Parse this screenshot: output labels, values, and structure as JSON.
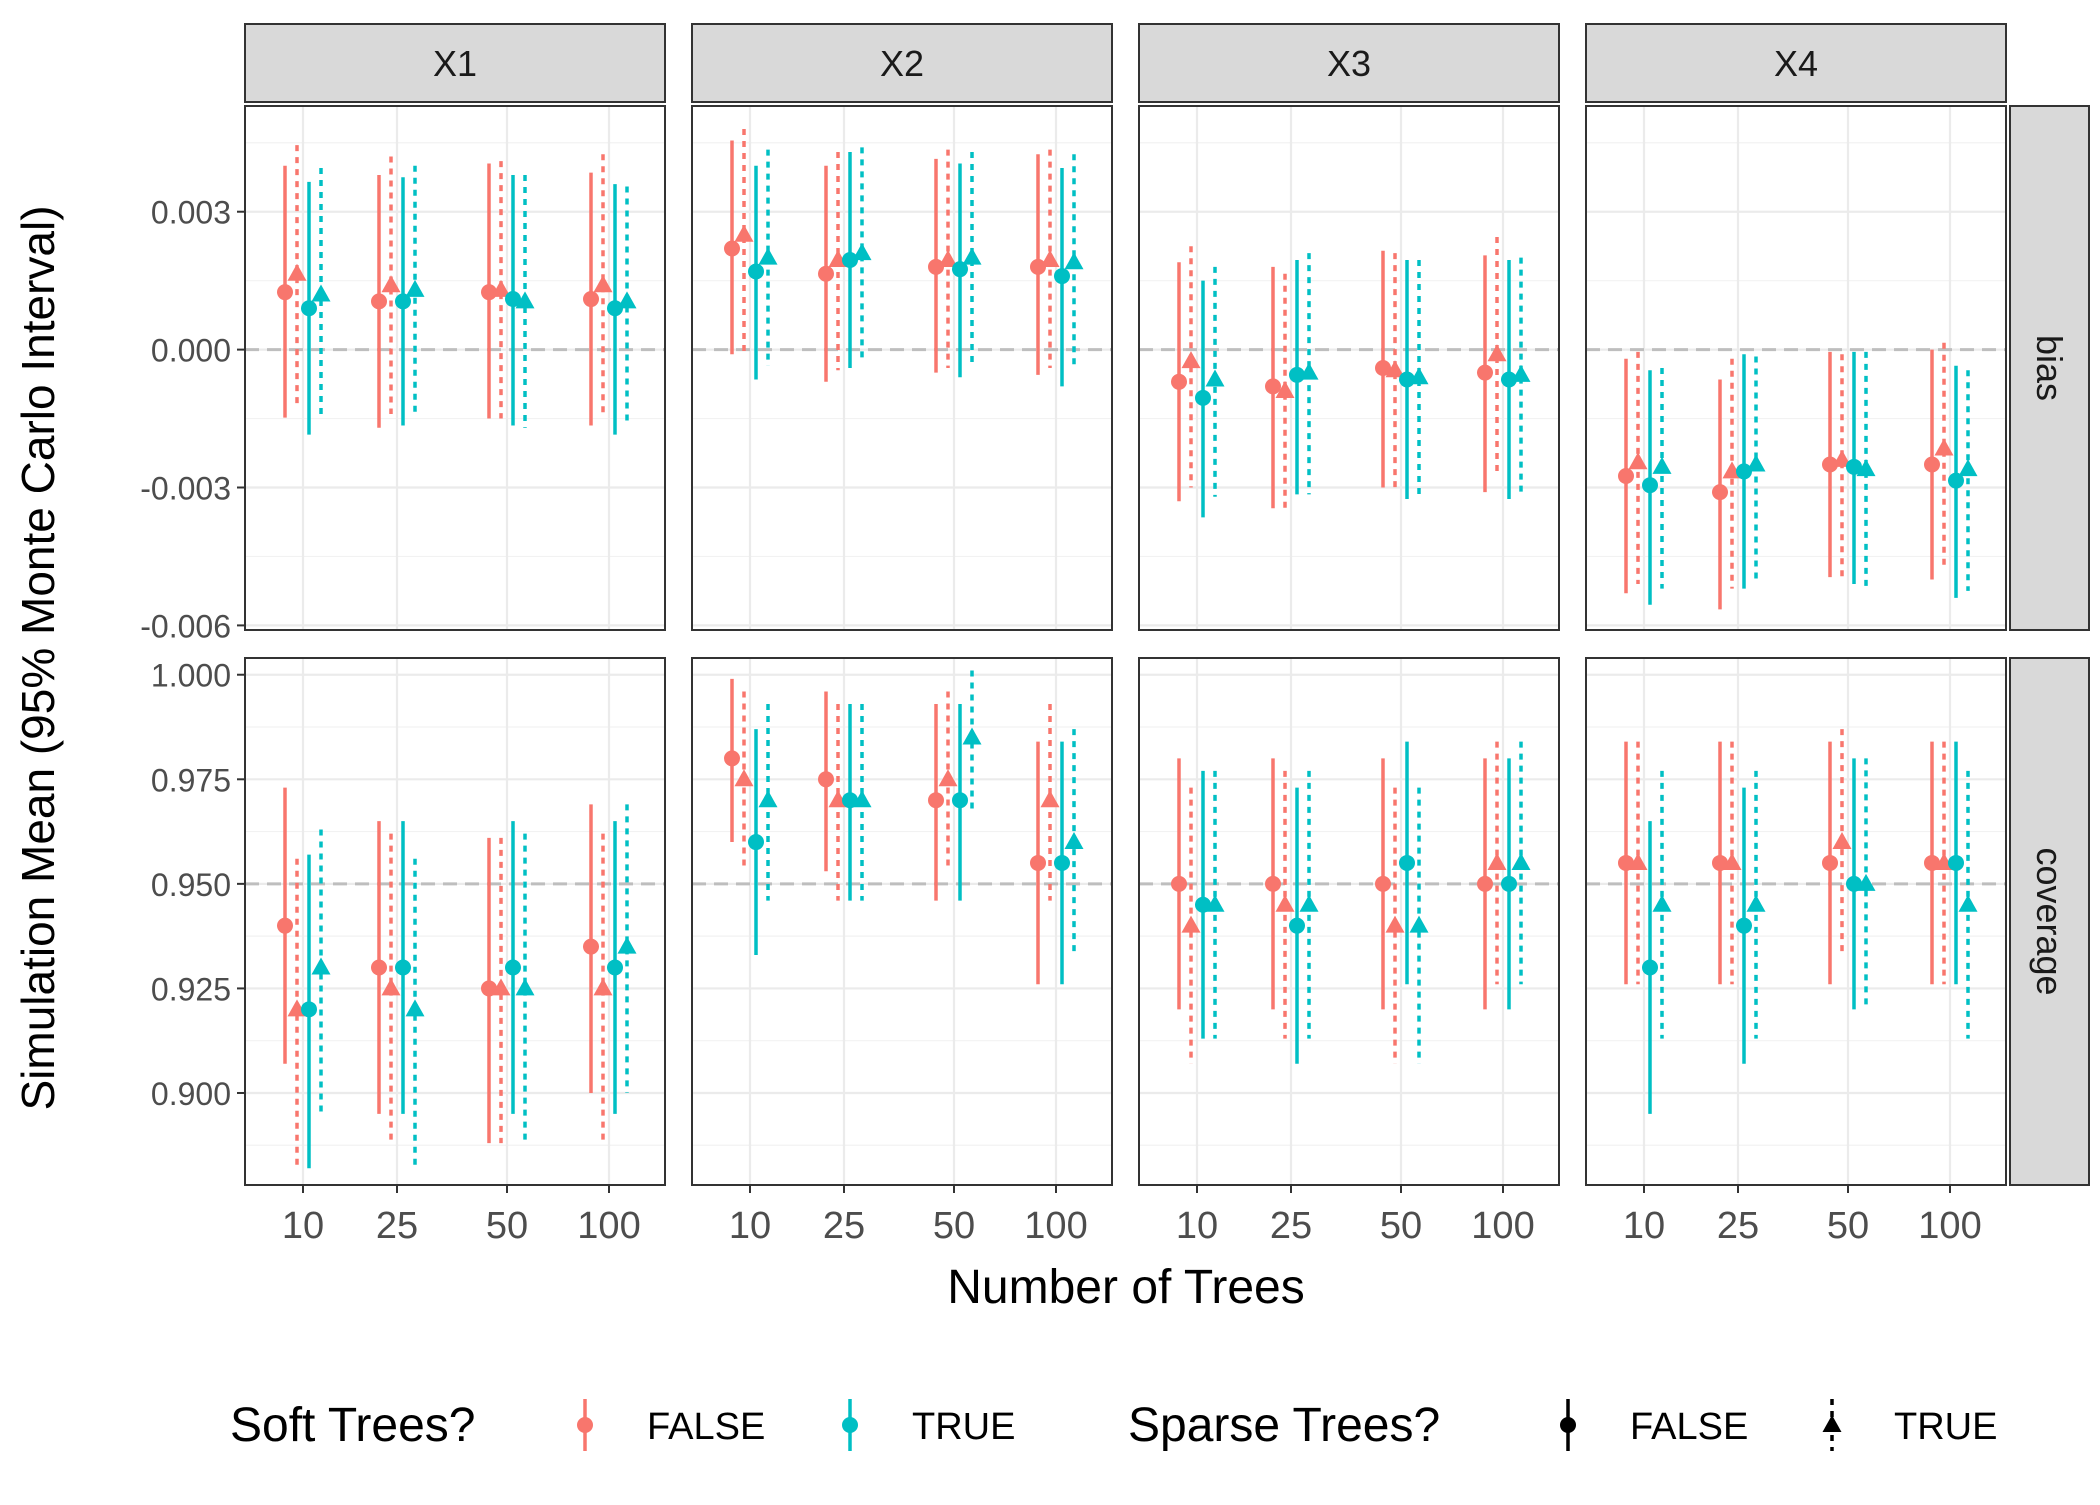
{
  "chart_data": {
    "type": "scatter",
    "facet_columns": [
      "X1",
      "X2",
      "X3",
      "X4"
    ],
    "facet_rows": [
      "bias",
      "coverage"
    ],
    "xlabel": "Number of Trees",
    "ylabel": "Simulation Mean (95% Monte Carlo Interval)",
    "x_categories": [
      "10",
      "25",
      "50",
      "100"
    ],
    "rows": [
      {
        "name": "bias",
        "ylim": [
          -0.0061,
          0.0053
        ],
        "yticks": [
          -0.006,
          -0.003,
          0.0,
          0.003
        ],
        "ytick_labels": [
          "-0.006",
          "-0.003",
          "0.000",
          "0.003"
        ],
        "reference": 0.0
      },
      {
        "name": "coverage",
        "ylim": [
          0.878,
          1.004
        ],
        "yticks": [
          0.9,
          0.925,
          0.95,
          0.975,
          1.0
        ],
        "ytick_labels": [
          "0.900",
          "0.925",
          "0.950",
          "0.975",
          "1.000"
        ],
        "reference": 0.95
      }
    ],
    "series_order": [
      {
        "soft": "FALSE",
        "sparse": "FALSE"
      },
      {
        "soft": "FALSE",
        "sparse": "TRUE"
      },
      {
        "soft": "TRUE",
        "sparse": "FALSE"
      },
      {
        "soft": "TRUE",
        "sparse": "TRUE"
      }
    ],
    "colors": {
      "FALSE": "#F8766D",
      "TRUE": "#00BFC4"
    },
    "data": {
      "bias": {
        "X1": [
          [
            [
              0.00125,
              -0.00148,
              0.004
            ],
            [
              0.00165,
              -0.0012,
              0.00445
            ],
            [
              0.0009,
              -0.00185,
              0.00365
            ],
            [
              0.0012,
              -0.0015,
              0.00395
            ]
          ],
          [
            [
              0.00105,
              -0.0017,
              0.0038
            ],
            [
              0.0014,
              -0.0014,
              0.0042
            ],
            [
              0.00105,
              -0.00165,
              0.00375
            ],
            [
              0.0013,
              -0.0014,
              0.004
            ]
          ],
          [
            [
              0.00125,
              -0.0015,
              0.00405
            ],
            [
              0.0013,
              -0.0015,
              0.0041
            ],
            [
              0.0011,
              -0.00165,
              0.0038
            ],
            [
              0.00105,
              -0.0017,
              0.0038
            ]
          ],
          [
            [
              0.0011,
              -0.00165,
              0.00385
            ],
            [
              0.0014,
              -0.0014,
              0.00425
            ],
            [
              0.0009,
              -0.00185,
              0.0036
            ],
            [
              0.00105,
              -0.00165,
              0.00355
            ]
          ]
        ],
        "X2": [
          [
            [
              0.0022,
              -0.0001,
              0.00455
            ],
            [
              0.0025,
              -5e-05,
              0.0048
            ],
            [
              0.0017,
              -0.00065,
              0.004
            ],
            [
              0.002,
              -0.00035,
              0.00435
            ]
          ],
          [
            [
              0.00165,
              -0.0007,
              0.004
            ],
            [
              0.00195,
              -0.00045,
              0.0043
            ],
            [
              0.00195,
              -0.0004,
              0.0043
            ],
            [
              0.0021,
              -0.0003,
              0.0044
            ]
          ],
          [
            [
              0.0018,
              -0.0005,
              0.00415
            ],
            [
              0.00195,
              -0.0004,
              0.00435
            ],
            [
              0.00175,
              -0.0006,
              0.00405
            ],
            [
              0.002,
              -0.0003,
              0.0043
            ]
          ],
          [
            [
              0.0018,
              -0.00055,
              0.00425
            ],
            [
              0.00195,
              -0.0004,
              0.00435
            ],
            [
              0.0016,
              -0.0008,
              0.00395
            ],
            [
              0.0019,
              -0.0004,
              0.00425
            ]
          ]
        ],
        "X3": [
          [
            [
              -0.0007,
              -0.0033,
              0.0019
            ],
            [
              -0.00025,
              -0.003,
              0.00225
            ],
            [
              -0.00105,
              -0.00365,
              0.0015
            ],
            [
              -0.00065,
              -0.0032,
              0.0018
            ]
          ],
          [
            [
              -0.0008,
              -0.00345,
              0.0018
            ],
            [
              -0.0009,
              -0.00355,
              0.00165
            ],
            [
              -0.00055,
              -0.00315,
              0.00195
            ],
            [
              -0.0005,
              -0.00315,
              0.0021
            ]
          ],
          [
            [
              -0.0004,
              -0.003,
              0.00215
            ],
            [
              -0.00045,
              -0.00305,
              0.0021
            ],
            [
              -0.00065,
              -0.00325,
              0.00195
            ],
            [
              -0.0006,
              -0.0032,
              0.00195
            ]
          ],
          [
            [
              -0.0005,
              -0.0031,
              0.00205
            ],
            [
              -0.0001,
              -0.00275,
              0.00245
            ],
            [
              -0.00065,
              -0.00325,
              0.00195
            ],
            [
              -0.00055,
              -0.00315,
              0.002
            ]
          ]
        ],
        "X4": [
          [
            [
              -0.00275,
              -0.0053,
              -0.0002
            ],
            [
              -0.00245,
              -0.0051,
              -5e-05
            ],
            [
              -0.00295,
              -0.00555,
              -0.00045
            ],
            [
              -0.00255,
              -0.0052,
              -0.0004
            ]
          ],
          [
            [
              -0.0031,
              -0.00565,
              -0.00065
            ],
            [
              -0.00265,
              -0.0052,
              -0.0002
            ],
            [
              -0.00265,
              -0.0052,
              -0.0001
            ],
            [
              -0.0025,
              -0.00505,
              -0.00015
            ]
          ],
          [
            [
              -0.0025,
              -0.00495,
              -5e-05
            ],
            [
              -0.0024,
              -0.005,
              -0.0001
            ],
            [
              -0.00255,
              -0.0051,
              -5e-05
            ],
            [
              -0.0026,
              -0.00525,
              -5e-05
            ]
          ],
          [
            [
              -0.0025,
              -0.005,
              0.0
            ],
            [
              -0.00215,
              -0.0048,
              0.00015
            ],
            [
              -0.00285,
              -0.0054,
              -0.00035
            ],
            [
              -0.0026,
              -0.00525,
              -0.00045
            ]
          ]
        ]
      },
      "coverage": {
        "X1": [
          [
            [
              0.94,
              0.907,
              0.973
            ],
            [
              0.92,
              0.882,
              0.956
            ],
            [
              0.92,
              0.882,
              0.957
            ],
            [
              0.93,
              0.895,
              0.963
            ]
          ],
          [
            [
              0.93,
              0.895,
              0.965
            ],
            [
              0.925,
              0.888,
              0.962
            ],
            [
              0.93,
              0.895,
              0.965
            ],
            [
              0.92,
              0.882,
              0.956
            ]
          ],
          [
            [
              0.925,
              0.888,
              0.961
            ],
            [
              0.925,
              0.888,
              0.961
            ],
            [
              0.93,
              0.895,
              0.965
            ],
            [
              0.925,
              0.888,
              0.962
            ]
          ],
          [
            [
              0.935,
              0.9,
              0.969
            ],
            [
              0.925,
              0.888,
              0.962
            ],
            [
              0.93,
              0.895,
              0.965
            ],
            [
              0.935,
              0.9,
              0.969
            ]
          ]
        ],
        "X2": [
          [
            [
              0.98,
              0.96,
              0.999
            ],
            [
              0.975,
              0.953,
              0.996
            ],
            [
              0.96,
              0.933,
              0.987
            ],
            [
              0.97,
              0.946,
              0.993
            ]
          ],
          [
            [
              0.975,
              0.953,
              0.996
            ],
            [
              0.97,
              0.946,
              0.993
            ],
            [
              0.97,
              0.946,
              0.993
            ],
            [
              0.97,
              0.946,
              0.993
            ]
          ],
          [
            [
              0.97,
              0.946,
              0.993
            ],
            [
              0.975,
              0.953,
              0.996
            ],
            [
              0.97,
              0.946,
              0.993
            ],
            [
              0.985,
              0.967,
              1.001
            ]
          ],
          [
            [
              0.955,
              0.926,
              0.984
            ],
            [
              0.97,
              0.946,
              0.993
            ],
            [
              0.955,
              0.926,
              0.984
            ],
            [
              0.96,
              0.933,
              0.987
            ]
          ]
        ],
        "X3": [
          [
            [
              0.95,
              0.92,
              0.98
            ],
            [
              0.94,
              0.907,
              0.973
            ],
            [
              0.945,
              0.913,
              0.977
            ],
            [
              0.945,
              0.913,
              0.977
            ]
          ],
          [
            [
              0.95,
              0.92,
              0.98
            ],
            [
              0.945,
              0.913,
              0.977
            ],
            [
              0.94,
              0.907,
              0.973
            ],
            [
              0.945,
              0.913,
              0.977
            ]
          ],
          [
            [
              0.95,
              0.92,
              0.98
            ],
            [
              0.94,
              0.907,
              0.973
            ],
            [
              0.955,
              0.926,
              0.984
            ],
            [
              0.94,
              0.907,
              0.973
            ]
          ],
          [
            [
              0.95,
              0.92,
              0.98
            ],
            [
              0.955,
              0.926,
              0.984
            ],
            [
              0.95,
              0.92,
              0.98
            ],
            [
              0.955,
              0.926,
              0.984
            ]
          ]
        ],
        "X4": [
          [
            [
              0.955,
              0.926,
              0.984
            ],
            [
              0.955,
              0.926,
              0.984
            ],
            [
              0.93,
              0.895,
              0.965
            ],
            [
              0.945,
              0.913,
              0.977
            ]
          ],
          [
            [
              0.955,
              0.926,
              0.984
            ],
            [
              0.955,
              0.926,
              0.984
            ],
            [
              0.94,
              0.907,
              0.973
            ],
            [
              0.945,
              0.913,
              0.977
            ]
          ],
          [
            [
              0.955,
              0.926,
              0.984
            ],
            [
              0.96,
              0.933,
              0.987
            ],
            [
              0.95,
              0.92,
              0.98
            ],
            [
              0.95,
              0.92,
              0.98
            ]
          ],
          [
            [
              0.955,
              0.926,
              0.984
            ],
            [
              0.955,
              0.926,
              0.984
            ],
            [
              0.955,
              0.926,
              0.984
            ],
            [
              0.945,
              0.913,
              0.977
            ]
          ]
        ]
      }
    },
    "legend": {
      "placement": "bottom",
      "soft": {
        "title": "Soft Trees?",
        "entries": [
          "FALSE",
          "TRUE"
        ]
      },
      "sparse": {
        "title": "Sparse Trees?",
        "entries": [
          "FALSE",
          "TRUE"
        ]
      }
    },
    "grid": true
  }
}
